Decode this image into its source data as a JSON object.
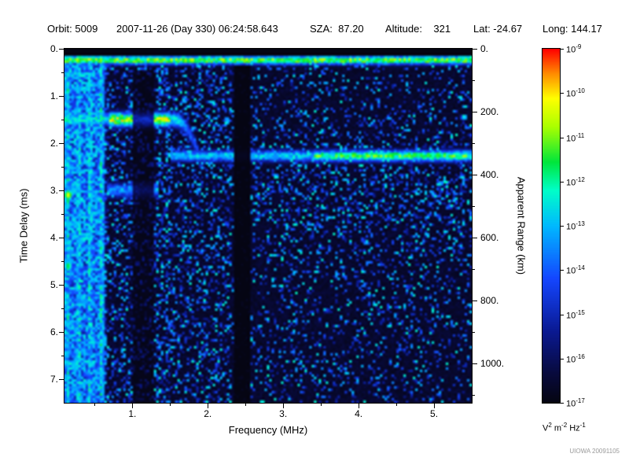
{
  "header": {
    "items": [
      "Orbit: 5009",
      "2007-11-26 (Day 330) 06:24:58.643",
      "SZA:  87.20",
      "Altitude:    321",
      "Lat: -24.67",
      "Long: 144.17"
    ]
  },
  "watermark": "UIOWA 20091105",
  "chart_data": {
    "type": "heatmap",
    "xlabel": "Frequency (MHz)",
    "ylabel_left": "Time Delay (ms)",
    "ylabel_right": "Apparent Range (km)",
    "x_range_mhz": [
      0.1,
      5.5
    ],
    "x_ticks": [
      1,
      2,
      3,
      4,
      5
    ],
    "x_tick_labels": [
      "1.",
      "2.",
      "3.",
      "4.",
      "5."
    ],
    "x_minor_ticks": [
      0.5,
      1.5,
      2.5,
      3.5,
      4.5
    ],
    "y_range_ms": [
      0,
      7.5
    ],
    "y_ticks": [
      0,
      1,
      2,
      3,
      4,
      5,
      6,
      7
    ],
    "y_tick_labels": [
      "0.",
      "1.",
      "2.",
      "3.",
      "4.",
      "5.",
      "6.",
      "7."
    ],
    "y_minor_ticks": [
      0.5,
      1.5,
      2.5,
      3.5,
      4.5,
      5.5,
      6.5
    ],
    "right_ticks_km": [
      0,
      200,
      400,
      600,
      800,
      1000
    ],
    "right_tick_labels": [
      "0.",
      "200.",
      "400.",
      "600.",
      "800.",
      "1000."
    ],
    "right_minor_ticks_km": [
      100,
      300,
      500,
      700,
      900,
      1100
    ],
    "range_km_per_ms": 150,
    "colorbar": {
      "exponents": [
        "-9",
        "-10",
        "-11",
        "-12",
        "-13",
        "-14",
        "-15",
        "-16",
        "-17"
      ],
      "units_parts": [
        [
          "V",
          "2"
        ],
        [
          "m",
          "-2"
        ],
        [
          "Hz",
          "-1"
        ]
      ]
    },
    "colormap_stops": [
      [
        0.0,
        [
          5,
          5,
          18
        ]
      ],
      [
        0.08,
        [
          8,
          10,
          60
        ]
      ],
      [
        0.2,
        [
          10,
          25,
          145
        ]
      ],
      [
        0.35,
        [
          20,
          70,
          255
        ]
      ],
      [
        0.5,
        [
          0,
          185,
          255
        ]
      ],
      [
        0.6,
        [
          0,
          255,
          200
        ]
      ],
      [
        0.68,
        [
          0,
          230,
          60
        ]
      ],
      [
        0.78,
        [
          170,
          255,
          0
        ]
      ],
      [
        0.86,
        [
          255,
          255,
          0
        ]
      ],
      [
        0.93,
        [
          255,
          140,
          0
        ]
      ],
      [
        1.0,
        [
          255,
          0,
          0
        ]
      ]
    ],
    "noise": {
      "f_breaks": [
        0.65,
        2.33
      ],
      "density_lowfreq": 0.92,
      "density_mid": 0.55,
      "density_high": 0.3
    },
    "features": [
      {
        "name": "blackout-top",
        "type": "blackout",
        "t_range": [
          0,
          0.14
        ]
      },
      {
        "name": "transmit-pulse-line",
        "type": "hline",
        "t": 0.24,
        "f_range": [
          0.1,
          5.5
        ],
        "intensity": 0.78,
        "sigma_ms": 0.07
      },
      {
        "name": "lowfreq-echo-streak-1",
        "type": "hline",
        "t": 0.55,
        "f_range": [
          0.1,
          0.5
        ],
        "intensity": 0.55,
        "sigma_ms": 0.08
      },
      {
        "name": "lowfreq-echo-streak-2",
        "type": "hline",
        "t": 0.85,
        "f_range": [
          0.1,
          0.45
        ],
        "intensity": 0.5,
        "sigma_ms": 0.08
      },
      {
        "name": "ionospheric-echo-trace",
        "type": "trace",
        "t": 1.5,
        "f_range": [
          0.1,
          1.62
        ],
        "intensity": 0.85,
        "sigma_ms": 0.11,
        "bright_f_range": [
          0.7,
          1.5
        ]
      },
      {
        "name": "ionospheric-cusp",
        "type": "cusp",
        "f_start": 1.55,
        "f_end": 1.95,
        "t_start": 1.5,
        "t_end": 2.55,
        "intensity": 0.62
      },
      {
        "name": "second-hop-echo",
        "type": "hline",
        "t": 3.0,
        "f_range": [
          0.65,
          1.35
        ],
        "intensity": 0.45,
        "sigma_ms": 0.12
      },
      {
        "name": "surface-reflection-trace",
        "type": "hline",
        "t": 2.27,
        "f_range": [
          1.5,
          5.5
        ],
        "intensity": 0.55,
        "sigma_ms": 0.09,
        "bright_f_min": 3.4,
        "bright_intensity": 0.72
      },
      {
        "name": "diffuse-subsurface-scatter",
        "type": "halo",
        "f_range": [
          2.6,
          5.5
        ],
        "t_center": 2.95,
        "t_sigma": 0.85,
        "density_boost": 0.28
      },
      {
        "name": "receiver-gap-band",
        "type": "dark_vband",
        "f_range": [
          2.34,
          2.58
        ],
        "factor": 0.06,
        "t_min": 0.36
      },
      {
        "name": "attenuated-band",
        "type": "dark_vband",
        "f_range": [
          1.02,
          1.3
        ],
        "factor": 0.32,
        "t_min": 0.45
      },
      {
        "name": "plasma-harmonic-lines",
        "type": "vlines",
        "freqs": [
          0.14,
          0.29,
          0.44,
          0.59
        ],
        "intensity": 0.62,
        "sigma_mhz": 0.034
      },
      {
        "name": "dense-lowfreq-noise",
        "type": "dense_region",
        "f_max": 0.62,
        "level": 0.55
      },
      {
        "name": "noise-column",
        "type": "vband_boost",
        "f_range": [
          1.33,
          1.5
        ],
        "boost": 0.25
      },
      {
        "name": "bright-blob-1",
        "type": "blob",
        "f": 0.15,
        "t": 3.1,
        "intensity": 0.86,
        "sf": 0.05,
        "st": 0.1
      },
      {
        "name": "bright-blob-2",
        "type": "blob",
        "f": 0.15,
        "t": 4.6,
        "intensity": 0.7,
        "sf": 0.05,
        "st": 0.1
      }
    ]
  }
}
